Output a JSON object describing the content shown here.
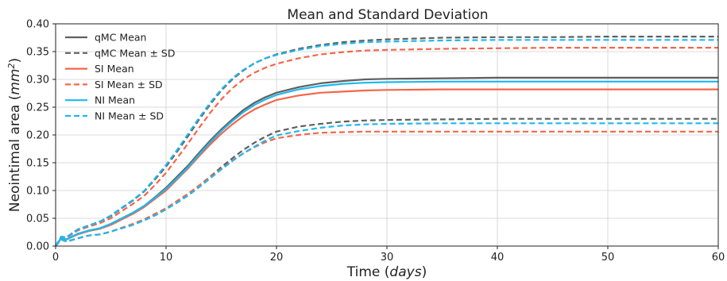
{
  "chart_data": {
    "type": "line",
    "title": "Mean and Standard Deviation",
    "xlabel_prefix": "Time (",
    "xlabel_unit": "days",
    "xlabel_suffix": ")",
    "ylabel_prefix": "Neointimal area (",
    "ylabel_unit": "mm",
    "ylabel_exp": "2",
    "ylabel_suffix": ")",
    "xlim": [
      0,
      60
    ],
    "ylim": [
      0,
      0.4
    ],
    "xticks": [
      0,
      10,
      20,
      30,
      40,
      50,
      60
    ],
    "xtick_labels": [
      "0",
      "10",
      "20",
      "30",
      "40",
      "50",
      "60"
    ],
    "yticks": [
      0,
      0.05,
      0.1,
      0.15,
      0.2,
      0.25,
      0.3,
      0.35,
      0.4
    ],
    "ytick_labels": [
      "0.00",
      "0.05",
      "0.10",
      "0.15",
      "0.20",
      "0.25",
      "0.30",
      "0.35",
      "0.40"
    ],
    "grid": true,
    "legend_position": "top-left",
    "x": [
      0,
      0.5,
      1,
      2,
      3,
      4,
      5,
      6,
      7,
      8,
      9,
      10,
      11,
      12,
      13,
      14,
      15,
      16,
      17,
      18,
      19,
      20,
      22,
      24,
      26,
      28,
      30,
      35,
      40,
      45,
      50,
      55,
      60
    ],
    "series": [
      {
        "name": "qMC Mean",
        "color": "#606060",
        "dash": false,
        "values": [
          0,
          0.014,
          0.012,
          0.022,
          0.028,
          0.032,
          0.04,
          0.05,
          0.06,
          0.072,
          0.088,
          0.105,
          0.125,
          0.145,
          0.168,
          0.19,
          0.21,
          0.228,
          0.245,
          0.258,
          0.268,
          0.276,
          0.286,
          0.293,
          0.297,
          0.3,
          0.301,
          0.302,
          0.303,
          0.303,
          0.303,
          0.303,
          0.303
        ]
      },
      {
        "name": "qMC Mean ± SD",
        "color": "#606060",
        "dash": true,
        "values": [
          0,
          0.016,
          0.016,
          0.03,
          0.037,
          0.044,
          0.054,
          0.068,
          0.082,
          0.098,
          0.12,
          0.143,
          0.17,
          0.198,
          0.228,
          0.255,
          0.28,
          0.3,
          0.316,
          0.329,
          0.338,
          0.345,
          0.355,
          0.362,
          0.367,
          0.37,
          0.372,
          0.375,
          0.376,
          0.376,
          0.377,
          0.377,
          0.377
        ]
      },
      {
        "name": "qMC Mean ± SD lower",
        "color": "#606060",
        "dash": true,
        "values": [
          0,
          0.012,
          0.008,
          0.014,
          0.019,
          0.021,
          0.026,
          0.033,
          0.039,
          0.047,
          0.057,
          0.068,
          0.081,
          0.094,
          0.109,
          0.125,
          0.142,
          0.158,
          0.173,
          0.186,
          0.197,
          0.206,
          0.215,
          0.22,
          0.224,
          0.226,
          0.227,
          0.228,
          0.229,
          0.229,
          0.229,
          0.229,
          0.229
        ]
      },
      {
        "name": "SI Mean",
        "color": "#f4664a",
        "dash": false,
        "values": [
          0,
          0.014,
          0.012,
          0.021,
          0.027,
          0.031,
          0.038,
          0.048,
          0.058,
          0.07,
          0.085,
          0.1,
          0.12,
          0.14,
          0.162,
          0.183,
          0.202,
          0.219,
          0.234,
          0.246,
          0.255,
          0.263,
          0.271,
          0.276,
          0.278,
          0.28,
          0.281,
          0.282,
          0.282,
          0.282,
          0.282,
          0.282,
          0.282
        ]
      },
      {
        "name": "SI Mean ± SD",
        "color": "#f4664a",
        "dash": true,
        "values": [
          0,
          0.016,
          0.015,
          0.028,
          0.035,
          0.041,
          0.05,
          0.063,
          0.076,
          0.09,
          0.11,
          0.132,
          0.158,
          0.185,
          0.213,
          0.24,
          0.264,
          0.284,
          0.3,
          0.312,
          0.321,
          0.328,
          0.338,
          0.345,
          0.349,
          0.352,
          0.353,
          0.355,
          0.356,
          0.357,
          0.357,
          0.357,
          0.357
        ]
      },
      {
        "name": "SI Mean ± SD lower",
        "color": "#f4664a",
        "dash": true,
        "values": [
          0,
          0.012,
          0.008,
          0.014,
          0.019,
          0.021,
          0.026,
          0.033,
          0.04,
          0.048,
          0.058,
          0.068,
          0.081,
          0.094,
          0.109,
          0.124,
          0.139,
          0.154,
          0.167,
          0.178,
          0.187,
          0.194,
          0.2,
          0.204,
          0.205,
          0.206,
          0.206,
          0.206,
          0.206,
          0.206,
          0.206,
          0.206,
          0.206
        ]
      },
      {
        "name": "NI Mean",
        "color": "#1eb8ee",
        "dash": false,
        "values": [
          0,
          0.015,
          0.012,
          0.022,
          0.028,
          0.032,
          0.04,
          0.05,
          0.06,
          0.072,
          0.087,
          0.103,
          0.122,
          0.142,
          0.165,
          0.187,
          0.207,
          0.225,
          0.241,
          0.254,
          0.264,
          0.272,
          0.282,
          0.288,
          0.292,
          0.294,
          0.295,
          0.296,
          0.296,
          0.296,
          0.296,
          0.296,
          0.296
        ]
      },
      {
        "name": "NI Mean ± SD",
        "color": "#1eb8ee",
        "dash": true,
        "values": [
          0,
          0.017,
          0.016,
          0.03,
          0.037,
          0.044,
          0.055,
          0.069,
          0.083,
          0.099,
          0.122,
          0.146,
          0.173,
          0.202,
          0.231,
          0.258,
          0.282,
          0.302,
          0.317,
          0.329,
          0.338,
          0.344,
          0.353,
          0.36,
          0.364,
          0.367,
          0.368,
          0.37,
          0.371,
          0.371,
          0.371,
          0.371,
          0.371
        ]
      },
      {
        "name": "NI Mean ± SD lower",
        "color": "#1eb8ee",
        "dash": true,
        "values": [
          0,
          0.012,
          0.008,
          0.014,
          0.019,
          0.021,
          0.026,
          0.032,
          0.038,
          0.046,
          0.055,
          0.066,
          0.078,
          0.091,
          0.106,
          0.122,
          0.138,
          0.153,
          0.167,
          0.179,
          0.19,
          0.199,
          0.207,
          0.213,
          0.217,
          0.219,
          0.22,
          0.221,
          0.221,
          0.221,
          0.221,
          0.221,
          0.221
        ]
      }
    ],
    "legend": [
      {
        "label": "qMC Mean",
        "color": "#606060",
        "dash": false
      },
      {
        "label": "qMC Mean ± SD",
        "color": "#606060",
        "dash": true
      },
      {
        "label": "SI Mean",
        "color": "#f4664a",
        "dash": false
      },
      {
        "label": "SI Mean ± SD",
        "color": "#f4664a",
        "dash": true
      },
      {
        "label": "NI Mean",
        "color": "#1eb8ee",
        "dash": false
      },
      {
        "label": "NI Mean ± SD",
        "color": "#1eb8ee",
        "dash": true
      }
    ]
  }
}
